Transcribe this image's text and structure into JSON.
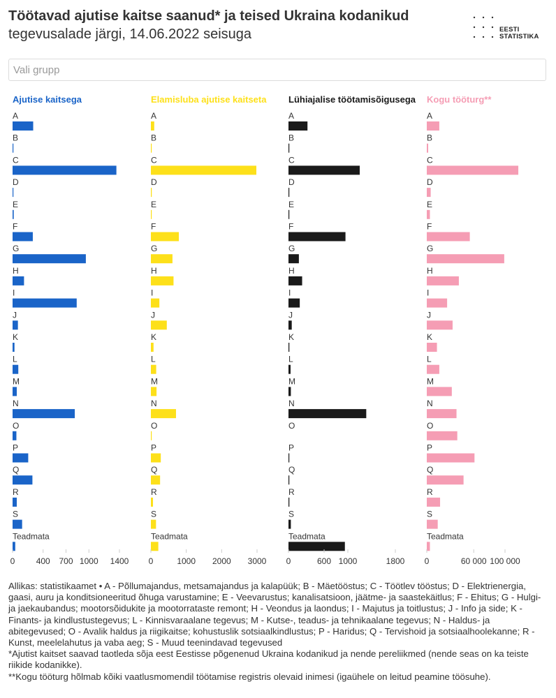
{
  "header": {
    "title": "Töötavad ajutise kaitse saanud* ja teised Ukraina kodanikud",
    "subtitle": "tegevusalade järgi, 14.06.2022 seisuga"
  },
  "logo": {
    "line1": "EESTI",
    "line2": "STATISTIKA"
  },
  "filter": {
    "placeholder": "Vali grupp"
  },
  "chart_data": [
    {
      "type": "bar",
      "orientation": "horizontal",
      "title": "Ajutise kaitsega",
      "color": "#1a64c8",
      "categories": [
        "A",
        "B",
        "C",
        "D",
        "E",
        "F",
        "G",
        "H",
        "I",
        "J",
        "K",
        "L",
        "M",
        "N",
        "O",
        "P",
        "Q",
        "R",
        "S",
        "Teadmata"
      ],
      "values": [
        270,
        5,
        1360,
        5,
        15,
        265,
        960,
        150,
        840,
        70,
        25,
        75,
        55,
        815,
        50,
        205,
        260,
        55,
        125,
        35
      ],
      "xlim": [
        0,
        1400
      ],
      "ticks": [
        0,
        400,
        700,
        1000,
        1400
      ],
      "tick_labels": [
        "0",
        "400",
        "700",
        "1000",
        "1400"
      ]
    },
    {
      "type": "bar",
      "orientation": "horizontal",
      "title": "Elamisluba ajutise kaitseta",
      "color": "#fde01a",
      "categories": [
        "A",
        "B",
        "C",
        "D",
        "E",
        "F",
        "G",
        "H",
        "I",
        "J",
        "K",
        "L",
        "M",
        "N",
        "O",
        "P",
        "Q",
        "R",
        "S",
        "Teadmata"
      ],
      "values": [
        95,
        5,
        2980,
        25,
        15,
        790,
        610,
        640,
        240,
        450,
        75,
        150,
        160,
        710,
        20,
        280,
        260,
        60,
        145,
        210
      ],
      "xlim": [
        0,
        3000
      ],
      "ticks": [
        0,
        1000,
        2000,
        3000
      ],
      "tick_labels": [
        "0",
        "1000",
        "2000",
        "3000"
      ]
    },
    {
      "type": "bar",
      "orientation": "horizontal",
      "title": "Lühiajalise töötamisõigusega",
      "color": "#1a1a1a",
      "categories": [
        "A",
        "B",
        "C",
        "D",
        "E",
        "F",
        "G",
        "H",
        "I",
        "J",
        "K",
        "L",
        "M",
        "N",
        "O",
        "P",
        "Q",
        "R",
        "S",
        "Teadmata"
      ],
      "values": [
        320,
        3,
        1200,
        12,
        5,
        960,
        175,
        230,
        190,
        55,
        15,
        35,
        40,
        1310,
        0,
        10,
        12,
        15,
        40,
        950
      ],
      "xlim": [
        0,
        1800
      ],
      "ticks": [
        0,
        600,
        1000,
        1800
      ],
      "tick_labels": [
        "0",
        "600",
        "1000",
        "1800"
      ]
    },
    {
      "type": "bar",
      "orientation": "horizontal",
      "title": "Kogu tööturg**",
      "color": "#f59db4",
      "categories": [
        "A",
        "B",
        "C",
        "D",
        "E",
        "F",
        "G",
        "H",
        "I",
        "J",
        "K",
        "L",
        "M",
        "N",
        "O",
        "P",
        "Q",
        "R",
        "S",
        "Teadmata"
      ],
      "values": [
        16000,
        1800,
        117000,
        5000,
        4000,
        55000,
        99000,
        41000,
        26000,
        33000,
        13000,
        16000,
        32000,
        38000,
        39000,
        61000,
        47000,
        17000,
        14000,
        4000
      ],
      "xlim": [
        0,
        125000
      ],
      "ticks": [
        0,
        60000,
        100000
      ],
      "tick_labels": [
        "0",
        "60 000",
        "100 000"
      ]
    }
  ],
  "footer": {
    "source": "Allikas: statistikaamet • A - Põllumajandus, metsamajandus ja kalapüük; B - Mäetööstus; C - Töötlev tööstus; D - Elektrienergia, gaasi, auru ja konditsioneeritud õhuga varustamine; E - Veevarustus; kanalisatsioon, jäätme- ja saastekäitlus; F - Ehitus; G - Hulgi- ja jaekaubandus; mootorsõidukite ja mootorrataste remont; H - Veondus ja laondus; I - Majutus ja toitlustus; J - Info ja side; K - Finants- ja kindlustustegevus; L - Kinnisvaraalane tegevus; M - Kutse-, teadus- ja tehnikaalane tegevus; N - Haldus- ja abitegevused; O - Avalik haldus ja riigikaitse; kohustuslik sotsiaalkindlustus; P - Haridus; Q - Tervishoid ja sotsiaalhoolekanne; R - Kunst, meelelahutus ja vaba aeg; S - Muud teenindavad tegevused",
    "note1": "*Ajutist kaitset saavad taotleda sõja eest Eestisse põgenenud Ukraina kodanikud ja nende pereliikmed (nende seas on ka teiste riikide kodanikke).",
    "note2": "**Kogu tööturg hõlmab kõiki vaatlusmomendil töötamise registris olevaid inimesi (igaühele on leitud peamine töösuhe)."
  }
}
